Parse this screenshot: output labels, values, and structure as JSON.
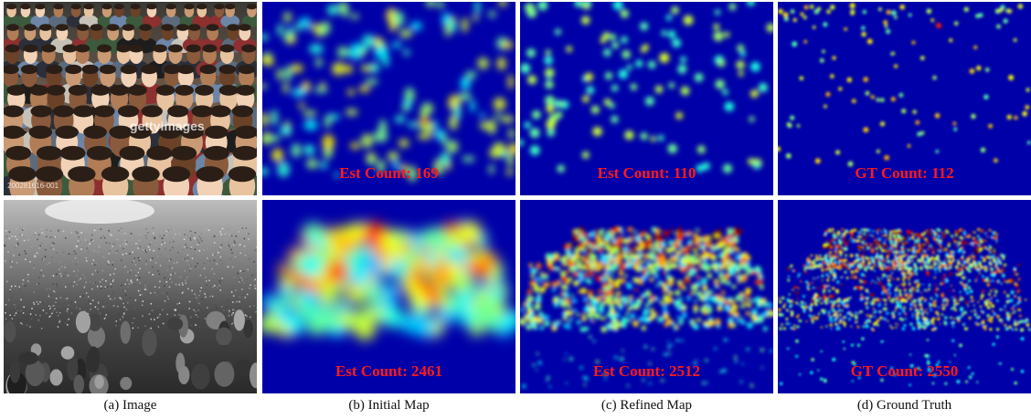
{
  "rows": [
    {
      "image_watermark": "gettyimages",
      "image_code": "200281616-001",
      "initial_count": "Est Count: 169",
      "refined_count": "Est Count: 110",
      "gt_count": "GT Count: 112"
    },
    {
      "initial_count": "Est Count: 2461",
      "refined_count": "Est Count: 2512",
      "gt_count": "GT Count: 2550"
    }
  ],
  "captions": {
    "image": "(a) Image",
    "initial": "(b) Initial Map",
    "refined": "(c) Refined Map",
    "ground_truth": "(d) Ground Truth"
  },
  "colors": {
    "map_background": "#0000a8",
    "count_text": "#ff1a1a"
  }
}
